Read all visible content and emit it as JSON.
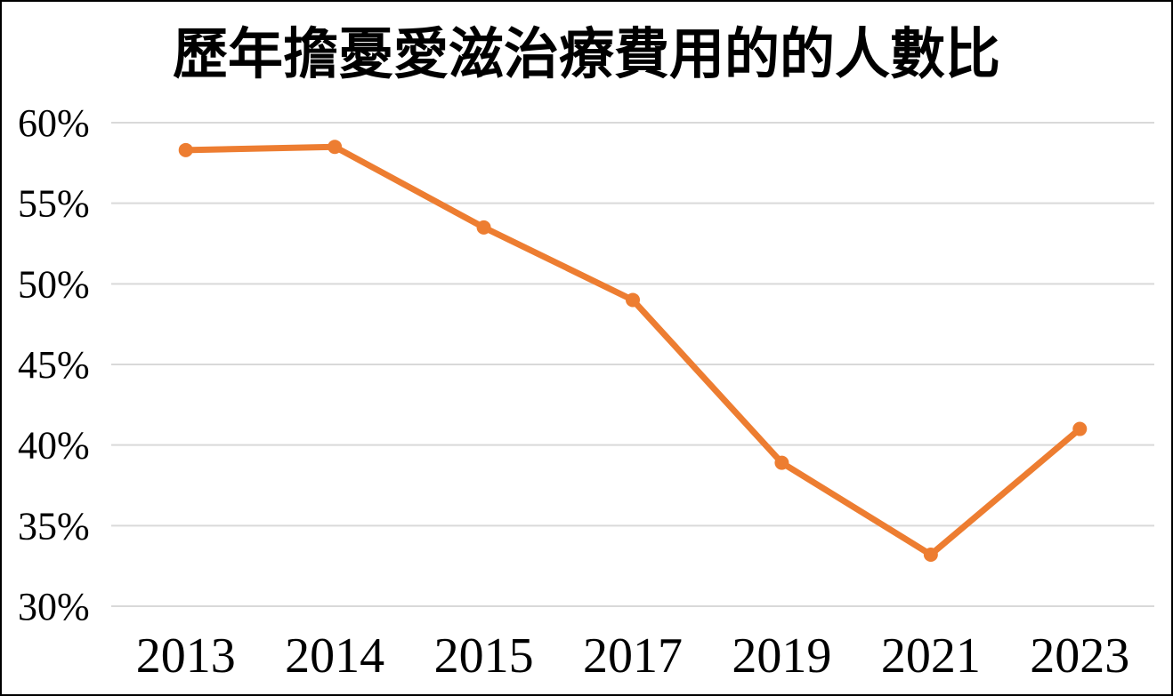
{
  "chart_data": {
    "type": "line",
    "title": "歷年擔憂愛滋治療費用的的人數比",
    "categories": [
      "2013",
      "2014",
      "2015",
      "2017",
      "2019",
      "2021",
      "2023"
    ],
    "values": [
      58.3,
      58.5,
      53.5,
      49.0,
      38.9,
      33.2,
      41.0
    ],
    "unit": "%",
    "xlabel": "",
    "ylabel": "",
    "ylim": [
      30,
      60
    ],
    "ytick_step": 5,
    "ytick_labels": [
      "30%",
      "35%",
      "40%",
      "45%",
      "50%",
      "55%",
      "60%"
    ],
    "grid": "horizontal-only",
    "legend": "none",
    "colors": {
      "line": "#ED7D31",
      "marker": "#ED7D31",
      "gridline": "#D9D9D9",
      "text": "#000000",
      "background": "#FFFFFF",
      "frame_border": "#000000"
    }
  }
}
